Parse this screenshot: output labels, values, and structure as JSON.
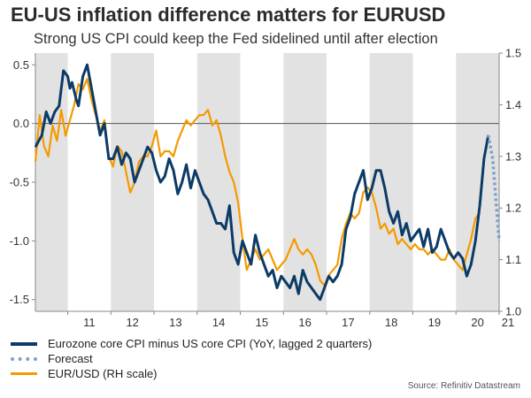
{
  "header": {
    "title": "EU-US inflation difference matters for EURUSD",
    "subtitle": "Strong US CPI could keep the Fed sidelined until after election"
  },
  "legend": {
    "core": "Eurozone core CPI minus US core CPI (YoY, lagged 2 quarters)",
    "forecast": "Forecast",
    "eurusd": "EUR/USD (RH scale)"
  },
  "source": "Source: Refinitiv Datastream",
  "colors": {
    "core": "#0b3b66",
    "forecast": "#7f9fc8",
    "eurusd": "#f49a00",
    "shade": "#e2e2e2"
  },
  "chart_data": {
    "type": "line",
    "x_range": [
      2010.25,
      2021.0
    ],
    "x_ticks": [
      "11",
      "12",
      "13",
      "14",
      "15",
      "16",
      "17",
      "18",
      "19",
      "20",
      "21"
    ],
    "shaded_years": [
      2010,
      2012,
      2014,
      2016,
      2018,
      2020
    ],
    "left_axis": {
      "ylim": [
        -1.6,
        0.6
      ],
      "ticks": [
        "0.5",
        "0.0",
        "-0.5",
        "-1.0",
        "-1.5"
      ],
      "zero_line": true
    },
    "right_axis": {
      "ylim": [
        1.0,
        1.5
      ],
      "ticks": [
        "1.5",
        "1.4",
        "1.3",
        "1.2",
        "1.1",
        "1.0"
      ]
    },
    "series": [
      {
        "name": "Eurozone core CPI minus US core CPI (YoY, lagged 2 quarters)",
        "axis": "left",
        "x": [
          2010.25,
          2010.4,
          2010.5,
          2010.6,
          2010.7,
          2010.8,
          2010.9,
          2011.0,
          2011.05,
          2011.1,
          2011.2,
          2011.25,
          2011.35,
          2011.45,
          2011.55,
          2011.65,
          2011.75,
          2011.85,
          2011.95,
          2012.05,
          2012.15,
          2012.25,
          2012.35,
          2012.45,
          2012.55,
          2012.65,
          2012.75,
          2012.85,
          2012.95,
          2013.05,
          2013.15,
          2013.25,
          2013.35,
          2013.45,
          2013.55,
          2013.65,
          2013.75,
          2013.85,
          2013.95,
          2014.05,
          2014.15,
          2014.25,
          2014.35,
          2014.45,
          2014.55,
          2014.65,
          2014.75,
          2014.85,
          2014.95,
          2015.05,
          2015.15,
          2015.25,
          2015.35,
          2015.45,
          2015.55,
          2015.65,
          2015.75,
          2015.85,
          2015.95,
          2016.05,
          2016.15,
          2016.25,
          2016.35,
          2016.45,
          2016.55,
          2016.65,
          2016.75,
          2016.85,
          2016.95,
          2017.05,
          2017.15,
          2017.25,
          2017.35,
          2017.45,
          2017.55,
          2017.65,
          2017.75,
          2017.85,
          2017.95,
          2018.05,
          2018.15,
          2018.25,
          2018.35,
          2018.45,
          2018.55,
          2018.65,
          2018.75,
          2018.85,
          2018.95,
          2019.05,
          2019.15,
          2019.25,
          2019.35,
          2019.45,
          2019.55,
          2019.65,
          2019.75,
          2019.85,
          2019.95,
          2020.05,
          2020.15,
          2020.25,
          2020.35,
          2020.45,
          2020.55,
          2020.65,
          2020.75
        ],
        "y": [
          -0.2,
          -0.1,
          0.1,
          0.0,
          0.1,
          0.15,
          0.45,
          0.4,
          0.3,
          0.35,
          0.2,
          0.15,
          0.4,
          0.5,
          0.3,
          0.1,
          -0.1,
          0.0,
          -0.3,
          -0.3,
          -0.2,
          -0.35,
          -0.25,
          -0.3,
          -0.5,
          -0.4,
          -0.3,
          -0.2,
          -0.25,
          -0.4,
          -0.5,
          -0.45,
          -0.3,
          -0.4,
          -0.6,
          -0.5,
          -0.35,
          -0.55,
          -0.4,
          -0.5,
          -0.6,
          -0.65,
          -0.75,
          -0.85,
          -0.85,
          -0.9,
          -0.7,
          -1.1,
          -1.2,
          -1.0,
          -1.1,
          -1.2,
          -0.95,
          -1.1,
          -1.2,
          -1.3,
          -1.25,
          -1.4,
          -1.3,
          -1.35,
          -1.4,
          -1.3,
          -1.45,
          -1.25,
          -1.35,
          -1.4,
          -1.45,
          -1.5,
          -1.4,
          -1.3,
          -1.35,
          -1.3,
          -1.2,
          -0.9,
          -0.8,
          -0.6,
          -0.5,
          -0.4,
          -0.65,
          -0.55,
          -0.4,
          -0.4,
          -0.55,
          -0.75,
          -0.85,
          -0.75,
          -0.95,
          -0.85,
          -1.0,
          -0.95,
          -0.9,
          -1.05,
          -0.9,
          -1.1,
          -1.05,
          -0.9,
          -1.0,
          -1.1,
          -1.15,
          -1.1,
          -1.15,
          -1.3,
          -1.2,
          -1.0,
          -0.7,
          -0.3,
          -0.1
        ]
      },
      {
        "name": "Forecast",
        "axis": "left",
        "x": [
          2020.75,
          2020.85,
          2021.0
        ],
        "y": [
          -0.1,
          -0.3,
          -1.0
        ]
      },
      {
        "name": "EUR/USD (RH scale)",
        "axis": "right",
        "x": [
          2010.25,
          2010.35,
          2010.45,
          2010.55,
          2010.65,
          2010.75,
          2010.85,
          2010.95,
          2011.05,
          2011.15,
          2011.25,
          2011.35,
          2011.45,
          2011.55,
          2011.65,
          2011.75,
          2011.85,
          2011.95,
          2012.05,
          2012.15,
          2012.25,
          2012.35,
          2012.45,
          2012.55,
          2012.65,
          2012.75,
          2012.85,
          2012.95,
          2013.05,
          2013.15,
          2013.25,
          2013.35,
          2013.45,
          2013.55,
          2013.65,
          2013.75,
          2013.85,
          2013.95,
          2014.05,
          2014.15,
          2014.25,
          2014.35,
          2014.45,
          2014.55,
          2014.65,
          2014.75,
          2014.85,
          2014.95,
          2015.05,
          2015.15,
          2015.25,
          2015.35,
          2015.45,
          2015.55,
          2015.65,
          2015.75,
          2015.85,
          2015.95,
          2016.05,
          2016.15,
          2016.25,
          2016.35,
          2016.45,
          2016.55,
          2016.65,
          2016.75,
          2016.85,
          2016.95,
          2017.05,
          2017.15,
          2017.25,
          2017.35,
          2017.45,
          2017.55,
          2017.65,
          2017.75,
          2017.85,
          2017.95,
          2018.05,
          2018.15,
          2018.25,
          2018.35,
          2018.45,
          2018.55,
          2018.65,
          2018.75,
          2018.85,
          2018.95,
          2019.05,
          2019.15,
          2019.25,
          2019.35,
          2019.45,
          2019.55,
          2019.65,
          2019.75,
          2019.85,
          2019.95,
          2020.05,
          2020.15,
          2020.25,
          2020.35,
          2020.45,
          2020.55
        ],
        "y": [
          1.29,
          1.38,
          1.32,
          1.3,
          1.36,
          1.33,
          1.39,
          1.34,
          1.37,
          1.4,
          1.44,
          1.43,
          1.45,
          1.41,
          1.38,
          1.35,
          1.37,
          1.3,
          1.28,
          1.32,
          1.31,
          1.27,
          1.23,
          1.25,
          1.29,
          1.3,
          1.3,
          1.32,
          1.35,
          1.3,
          1.31,
          1.31,
          1.3,
          1.33,
          1.35,
          1.37,
          1.36,
          1.37,
          1.38,
          1.38,
          1.39,
          1.36,
          1.37,
          1.34,
          1.3,
          1.27,
          1.25,
          1.21,
          1.14,
          1.08,
          1.1,
          1.12,
          1.1,
          1.11,
          1.12,
          1.1,
          1.08,
          1.09,
          1.1,
          1.12,
          1.14,
          1.12,
          1.11,
          1.12,
          1.11,
          1.09,
          1.06,
          1.05,
          1.07,
          1.08,
          1.09,
          1.14,
          1.17,
          1.19,
          1.18,
          1.19,
          1.23,
          1.24,
          1.23,
          1.2,
          1.16,
          1.17,
          1.15,
          1.16,
          1.13,
          1.14,
          1.13,
          1.12,
          1.13,
          1.12,
          1.12,
          1.11,
          1.12,
          1.11,
          1.1,
          1.1,
          1.12,
          1.1,
          1.09,
          1.08,
          1.11,
          1.14,
          1.18,
          1.19
        ]
      }
    ]
  }
}
